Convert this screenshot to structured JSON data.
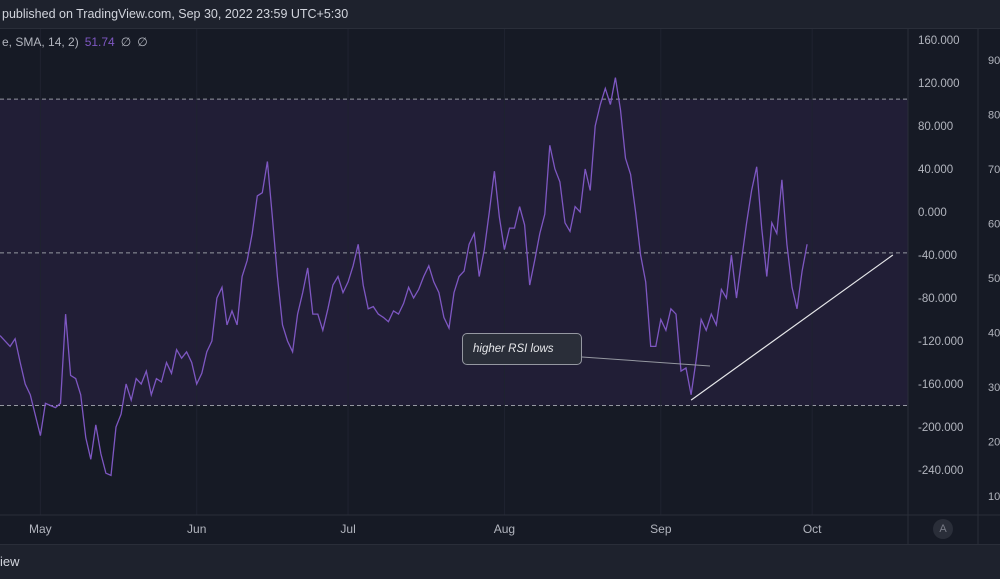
{
  "header": {
    "publish_text": "published on TradingView.com, Sep 30, 2022 23:59 UTC+5:30"
  },
  "legend": {
    "label": "e, SMA, 14, 2)",
    "value": "51.74",
    "na1": "∅",
    "na2": "∅"
  },
  "footer": {
    "brand_fragment": "iew"
  },
  "axis_button": {
    "label": "A"
  },
  "colors": {
    "rsi_line": "#7e57c2",
    "band_fill": "#211e36",
    "background": "#161a25",
    "level_line": "#9598a1",
    "trendline": "#e6e7ea"
  },
  "chart_data": {
    "type": "line",
    "title": "",
    "xlabel": "",
    "ylabel": "",
    "ylim": [
      -270,
      175
    ],
    "yticks": [
      "160.000",
      "120.000",
      "80.000",
      "40.000",
      "0.000",
      "-40.000",
      "-80.000",
      "-120.000",
      "-160.000",
      "-200.000",
      "-240.000"
    ],
    "right_axis_ticks": [
      "90",
      "80",
      "70",
      "60",
      "50",
      "40",
      "30",
      "20",
      "10"
    ],
    "x_labels": [
      "May",
      "Jun",
      "Jul",
      "Aug",
      "Sep",
      "Oct"
    ],
    "x_label_dates": [
      "2022-05-01",
      "2022-06-01",
      "2022-07-01",
      "2022-08-01",
      "2022-09-01",
      "2022-10-01"
    ],
    "x_range": [
      "2022-04-23",
      "2022-10-20"
    ],
    "band": {
      "upper": 105,
      "lower": -180,
      "mid": -38
    },
    "series": [
      {
        "values": [
          [
            "2022-04-23",
            -115
          ],
          [
            "2022-04-25",
            -125
          ],
          [
            "2022-04-26",
            -118
          ],
          [
            "2022-04-27",
            -140
          ],
          [
            "2022-04-28",
            -160
          ],
          [
            "2022-04-29",
            -170
          ],
          [
            "2022-05-01",
            -208
          ],
          [
            "2022-05-02",
            -178
          ],
          [
            "2022-05-03",
            -180
          ],
          [
            "2022-05-04",
            -182
          ],
          [
            "2022-05-05",
            -178
          ],
          [
            "2022-05-06",
            -95
          ],
          [
            "2022-05-07",
            -152
          ],
          [
            "2022-05-08",
            -155
          ],
          [
            "2022-05-09",
            -170
          ],
          [
            "2022-05-10",
            -210
          ],
          [
            "2022-05-11",
            -230
          ],
          [
            "2022-05-12",
            -198
          ],
          [
            "2022-05-13",
            -225
          ],
          [
            "2022-05-14",
            -243
          ],
          [
            "2022-05-15",
            -245
          ],
          [
            "2022-05-16",
            -200
          ],
          [
            "2022-05-17",
            -188
          ],
          [
            "2022-05-18",
            -160
          ],
          [
            "2022-05-19",
            -175
          ],
          [
            "2022-05-20",
            -155
          ],
          [
            "2022-05-21",
            -160
          ],
          [
            "2022-05-22",
            -148
          ],
          [
            "2022-05-23",
            -170
          ],
          [
            "2022-05-24",
            -155
          ],
          [
            "2022-05-25",
            -158
          ],
          [
            "2022-05-26",
            -140
          ],
          [
            "2022-05-27",
            -150
          ],
          [
            "2022-05-28",
            -128
          ],
          [
            "2022-05-29",
            -136
          ],
          [
            "2022-05-30",
            -130
          ],
          [
            "2022-05-31",
            -140
          ],
          [
            "2022-06-01",
            -160
          ],
          [
            "2022-06-02",
            -150
          ],
          [
            "2022-06-03",
            -130
          ],
          [
            "2022-06-04",
            -120
          ],
          [
            "2022-06-05",
            -80
          ],
          [
            "2022-06-06",
            -70
          ],
          [
            "2022-06-07",
            -105
          ],
          [
            "2022-06-08",
            -92
          ],
          [
            "2022-06-09",
            -105
          ],
          [
            "2022-06-10",
            -60
          ],
          [
            "2022-06-11",
            -45
          ],
          [
            "2022-06-12",
            -20
          ],
          [
            "2022-06-13",
            15
          ],
          [
            "2022-06-14",
            18
          ],
          [
            "2022-06-15",
            47
          ],
          [
            "2022-06-16",
            -5
          ],
          [
            "2022-06-17",
            -60
          ],
          [
            "2022-06-18",
            -105
          ],
          [
            "2022-06-19",
            -120
          ],
          [
            "2022-06-20",
            -130
          ],
          [
            "2022-06-21",
            -95
          ],
          [
            "2022-06-22",
            -75
          ],
          [
            "2022-06-23",
            -52
          ],
          [
            "2022-06-24",
            -95
          ],
          [
            "2022-06-25",
            -95
          ],
          [
            "2022-06-26",
            -110
          ],
          [
            "2022-06-27",
            -90
          ],
          [
            "2022-06-28",
            -68
          ],
          [
            "2022-06-29",
            -60
          ],
          [
            "2022-06-30",
            -75
          ],
          [
            "2022-07-01",
            -65
          ],
          [
            "2022-07-02",
            -50
          ],
          [
            "2022-07-03",
            -30
          ],
          [
            "2022-07-04",
            -68
          ],
          [
            "2022-07-05",
            -90
          ],
          [
            "2022-07-06",
            -88
          ],
          [
            "2022-07-07",
            -95
          ],
          [
            "2022-07-08",
            -98
          ],
          [
            "2022-07-09",
            -102
          ],
          [
            "2022-07-10",
            -92
          ],
          [
            "2022-07-11",
            -95
          ],
          [
            "2022-07-12",
            -85
          ],
          [
            "2022-07-13",
            -70
          ],
          [
            "2022-07-14",
            -80
          ],
          [
            "2022-07-15",
            -72
          ],
          [
            "2022-07-16",
            -60
          ],
          [
            "2022-07-17",
            -50
          ],
          [
            "2022-07-18",
            -65
          ],
          [
            "2022-07-19",
            -75
          ],
          [
            "2022-07-20",
            -98
          ],
          [
            "2022-07-21",
            -108
          ],
          [
            "2022-07-22",
            -75
          ],
          [
            "2022-07-23",
            -60
          ],
          [
            "2022-07-24",
            -55
          ],
          [
            "2022-07-25",
            -30
          ],
          [
            "2022-07-26",
            -20
          ],
          [
            "2022-07-27",
            -60
          ],
          [
            "2022-07-28",
            -35
          ],
          [
            "2022-07-29",
            0
          ],
          [
            "2022-07-30",
            38
          ],
          [
            "2022-07-31",
            -5
          ],
          [
            "2022-08-01",
            -35
          ],
          [
            "2022-08-02",
            -15
          ],
          [
            "2022-08-03",
            -15
          ],
          [
            "2022-08-04",
            5
          ],
          [
            "2022-08-05",
            -12
          ],
          [
            "2022-08-06",
            -68
          ],
          [
            "2022-08-07",
            -45
          ],
          [
            "2022-08-08",
            -20
          ],
          [
            "2022-08-09",
            -2
          ],
          [
            "2022-08-10",
            62
          ],
          [
            "2022-08-11",
            40
          ],
          [
            "2022-08-12",
            28
          ],
          [
            "2022-08-13",
            -10
          ],
          [
            "2022-08-14",
            -18
          ],
          [
            "2022-08-15",
            5
          ],
          [
            "2022-08-16",
            0
          ],
          [
            "2022-08-17",
            40
          ],
          [
            "2022-08-18",
            20
          ],
          [
            "2022-08-19",
            80
          ],
          [
            "2022-08-20",
            100
          ],
          [
            "2022-08-21",
            115
          ],
          [
            "2022-08-22",
            100
          ],
          [
            "2022-08-23",
            125
          ],
          [
            "2022-08-24",
            95
          ],
          [
            "2022-08-25",
            50
          ],
          [
            "2022-08-26",
            35
          ],
          [
            "2022-08-27",
            0
          ],
          [
            "2022-08-28",
            -40
          ],
          [
            "2022-08-29",
            -65
          ],
          [
            "2022-08-30",
            -125
          ],
          [
            "2022-08-31",
            -125
          ],
          [
            "2022-09-01",
            -100
          ],
          [
            "2022-09-02",
            -110
          ],
          [
            "2022-09-03",
            -90
          ],
          [
            "2022-09-04",
            -95
          ],
          [
            "2022-09-05",
            -148
          ],
          [
            "2022-09-06",
            -145
          ],
          [
            "2022-09-07",
            -170
          ],
          [
            "2022-09-08",
            -138
          ],
          [
            "2022-09-09",
            -100
          ],
          [
            "2022-09-10",
            -110
          ],
          [
            "2022-09-11",
            -95
          ],
          [
            "2022-09-12",
            -105
          ],
          [
            "2022-09-13",
            -72
          ],
          [
            "2022-09-14",
            -80
          ],
          [
            "2022-09-15",
            -40
          ],
          [
            "2022-09-16",
            -80
          ],
          [
            "2022-09-17",
            -45
          ],
          [
            "2022-09-18",
            -10
          ],
          [
            "2022-09-19",
            20
          ],
          [
            "2022-09-20",
            42
          ],
          [
            "2022-09-21",
            -15
          ],
          [
            "2022-09-22",
            -60
          ],
          [
            "2022-09-23",
            -10
          ],
          [
            "2022-09-24",
            -20
          ],
          [
            "2022-09-25",
            30
          ],
          [
            "2022-09-26",
            -30
          ],
          [
            "2022-09-27",
            -70
          ],
          [
            "2022-09-28",
            -90
          ],
          [
            "2022-09-29",
            -55
          ],
          [
            "2022-09-30",
            -30
          ]
        ]
      }
    ],
    "trendline": {
      "start": [
        "2022-09-07",
        -175
      ],
      "end": [
        "2022-10-17",
        -40
      ]
    },
    "annotations": [
      {
        "text": "higher RSI lows"
      }
    ]
  }
}
